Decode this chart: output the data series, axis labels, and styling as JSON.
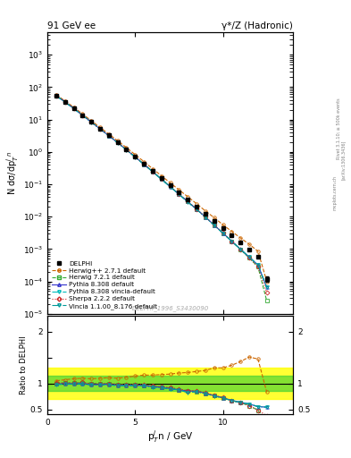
{
  "title_left": "91 GeV ee",
  "title_right": "γ*/Z (Hadronic)",
  "ylabel_main": "N dσ/dp$_T^j$n",
  "ylabel_ratio": "Ratio to DELPHI",
  "xlabel": "p$_T^j$n / GeV",
  "watermark": "DELPHI_1996_S3430090",
  "x_delphi": [
    0.5,
    1.0,
    1.5,
    2.0,
    2.5,
    3.0,
    3.5,
    4.0,
    4.5,
    5.0,
    5.5,
    6.0,
    6.5,
    7.0,
    7.5,
    8.0,
    8.5,
    9.0,
    9.5,
    10.0,
    10.5,
    11.0,
    11.5,
    12.0,
    12.5
  ],
  "y_delphi": [
    55.0,
    35.0,
    22.0,
    13.5,
    8.5,
    5.2,
    3.2,
    2.0,
    1.2,
    0.72,
    0.43,
    0.26,
    0.155,
    0.093,
    0.056,
    0.034,
    0.02,
    0.012,
    0.0072,
    0.0043,
    0.0026,
    0.00155,
    0.00093,
    0.00058,
    0.00012
  ],
  "y_delphi_err": [
    2.0,
    1.2,
    0.8,
    0.5,
    0.3,
    0.18,
    0.11,
    0.07,
    0.04,
    0.025,
    0.015,
    0.009,
    0.005,
    0.003,
    0.002,
    0.001,
    0.0007,
    0.0004,
    0.00025,
    0.00015,
    0.0001,
    6e-05,
    4e-05,
    3e-05,
    2e-05
  ],
  "x_mc": [
    0.5,
    1.0,
    1.5,
    2.0,
    2.5,
    3.0,
    3.5,
    4.0,
    4.5,
    5.0,
    5.5,
    6.0,
    6.5,
    7.0,
    7.5,
    8.0,
    8.5,
    9.0,
    9.5,
    10.0,
    10.5,
    11.0,
    11.5,
    12.0,
    12.5
  ],
  "herwig271_y": [
    58.0,
    37.5,
    24.0,
    14.8,
    9.2,
    5.7,
    3.55,
    2.2,
    1.36,
    0.82,
    0.5,
    0.3,
    0.182,
    0.11,
    0.067,
    0.041,
    0.025,
    0.015,
    0.0093,
    0.0056,
    0.0035,
    0.0022,
    0.0014,
    0.00085,
    0.0001
  ],
  "herwig721_y": [
    55.0,
    35.2,
    22.2,
    13.7,
    8.5,
    5.2,
    3.18,
    1.95,
    1.17,
    0.7,
    0.416,
    0.246,
    0.144,
    0.085,
    0.049,
    0.029,
    0.017,
    0.0097,
    0.0055,
    0.0031,
    0.00174,
    0.00097,
    0.00053,
    0.00028,
    2.5e-05
  ],
  "pythia8308_y": [
    54.5,
    34.8,
    21.9,
    13.5,
    8.3,
    5.1,
    3.15,
    1.93,
    1.16,
    0.695,
    0.413,
    0.244,
    0.143,
    0.084,
    0.049,
    0.029,
    0.017,
    0.0097,
    0.0055,
    0.0031,
    0.00175,
    0.00099,
    0.00056,
    0.00032,
    6.5e-05
  ],
  "pythia8308v_y": [
    54.0,
    34.5,
    21.7,
    13.4,
    8.25,
    5.05,
    3.12,
    1.91,
    1.15,
    0.688,
    0.41,
    0.242,
    0.142,
    0.083,
    0.049,
    0.028,
    0.0168,
    0.0096,
    0.00545,
    0.00308,
    0.00174,
    0.00098,
    0.00056,
    0.00032,
    6.5e-05
  ],
  "sherpa222_y": [
    55.5,
    35.5,
    22.3,
    13.75,
    8.45,
    5.18,
    3.2,
    1.96,
    1.18,
    0.705,
    0.419,
    0.247,
    0.145,
    0.0855,
    0.0499,
    0.0293,
    0.0172,
    0.00985,
    0.00557,
    0.00312,
    0.00175,
    0.00097,
    0.00053,
    0.00028,
    4.5e-05
  ],
  "vincia_y": [
    54.0,
    34.5,
    21.7,
    13.4,
    8.25,
    5.05,
    3.12,
    1.91,
    1.15,
    0.688,
    0.41,
    0.242,
    0.142,
    0.083,
    0.049,
    0.028,
    0.0168,
    0.0096,
    0.00545,
    0.00308,
    0.00174,
    0.00098,
    0.00056,
    0.00032,
    6.5e-05
  ],
  "ratio_herwig271": [
    1.05,
    1.07,
    1.09,
    1.1,
    1.09,
    1.1,
    1.11,
    1.1,
    1.12,
    1.14,
    1.16,
    1.16,
    1.17,
    1.18,
    1.2,
    1.21,
    1.23,
    1.25,
    1.3,
    1.3,
    1.35,
    1.42,
    1.51,
    1.47,
    0.83
  ],
  "ratio_herwig721": [
    1.0,
    1.01,
    1.01,
    1.01,
    1.0,
    1.0,
    0.99,
    0.975,
    0.975,
    0.972,
    0.967,
    0.945,
    0.93,
    0.91,
    0.875,
    0.853,
    0.84,
    0.808,
    0.764,
    0.721,
    0.669,
    0.626,
    0.57,
    0.483,
    0.208
  ],
  "ratio_pythia8308": [
    0.99,
    0.994,
    0.995,
    0.999,
    0.976,
    0.981,
    0.984,
    0.965,
    0.967,
    0.965,
    0.96,
    0.938,
    0.923,
    0.903,
    0.875,
    0.853,
    0.85,
    0.808,
    0.764,
    0.721,
    0.673,
    0.639,
    0.602,
    0.552,
    0.542
  ],
  "ratio_pythia8308v": [
    0.98,
    0.986,
    0.987,
    0.992,
    0.97,
    0.971,
    0.975,
    0.955,
    0.958,
    0.956,
    0.953,
    0.93,
    0.916,
    0.892,
    0.875,
    0.824,
    0.84,
    0.8,
    0.757,
    0.717,
    0.669,
    0.632,
    0.602,
    0.552,
    0.542
  ],
  "ratio_sherpa222": [
    1.01,
    1.01,
    1.01,
    1.02,
    0.994,
    0.996,
    1.0,
    0.98,
    0.983,
    0.979,
    0.974,
    0.95,
    0.935,
    0.919,
    0.891,
    0.862,
    0.86,
    0.821,
    0.774,
    0.726,
    0.673,
    0.626,
    0.57,
    0.483,
    0.375
  ],
  "ratio_vincia": [
    0.98,
    0.986,
    0.987,
    0.992,
    0.97,
    0.971,
    0.975,
    0.955,
    0.958,
    0.956,
    0.953,
    0.93,
    0.916,
    0.892,
    0.875,
    0.824,
    0.84,
    0.8,
    0.757,
    0.717,
    0.669,
    0.632,
    0.602,
    0.552,
    0.542
  ],
  "colors": {
    "delphi": "#000000",
    "herwig271": "#cc6600",
    "herwig721": "#33aa33",
    "pythia8308": "#3333cc",
    "pythia8308v": "#00bbbb",
    "sherpa222": "#cc2222",
    "vincia": "#009999"
  },
  "ylim_main": [
    1e-05,
    5000
  ],
  "ylim_ratio": [
    0.4,
    2.3
  ],
  "xlim": [
    0,
    14.0
  ],
  "xticks": [
    0,
    5,
    10
  ],
  "ratio_yticks": [
    0.5,
    1.0,
    1.5,
    2.0
  ],
  "ratio_yticklabels": [
    "0.5",
    "1",
    "",
    "2"
  ]
}
